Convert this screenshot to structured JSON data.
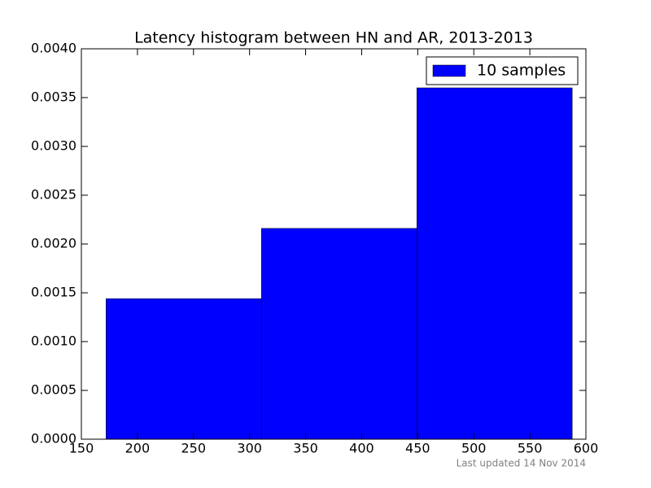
{
  "chart_data": {
    "type": "histogram",
    "title": "Latency histogram between HN and AR, 2013-2013",
    "footnote": "Last updated 14 Nov 2014",
    "bins": [
      172,
      310.6,
      449.2,
      587.8
    ],
    "series": [
      {
        "name": "10 samples",
        "color": "#0000ff",
        "values": [
          0.00144,
          0.00216,
          0.0036
        ]
      }
    ],
    "xlim": [
      150,
      600
    ],
    "xticks": [
      150,
      200,
      250,
      300,
      350,
      400,
      450,
      500,
      550,
      600
    ],
    "ylim": [
      0,
      0.004
    ],
    "yticks": [
      {
        "value": 0,
        "label": "0.0000"
      },
      {
        "value": 0.0005,
        "label": "0.0005"
      },
      {
        "value": 0.001,
        "label": "0.0010"
      },
      {
        "value": 0.0015,
        "label": "0.0015"
      },
      {
        "value": 0.002,
        "label": "0.0020"
      },
      {
        "value": 0.0025,
        "label": "0.0025"
      },
      {
        "value": 0.003,
        "label": "0.0030"
      },
      {
        "value": 0.0035,
        "label": "0.0035"
      },
      {
        "value": 0.004,
        "label": "0.0040"
      }
    ],
    "grid": false,
    "legend": "upper right"
  }
}
